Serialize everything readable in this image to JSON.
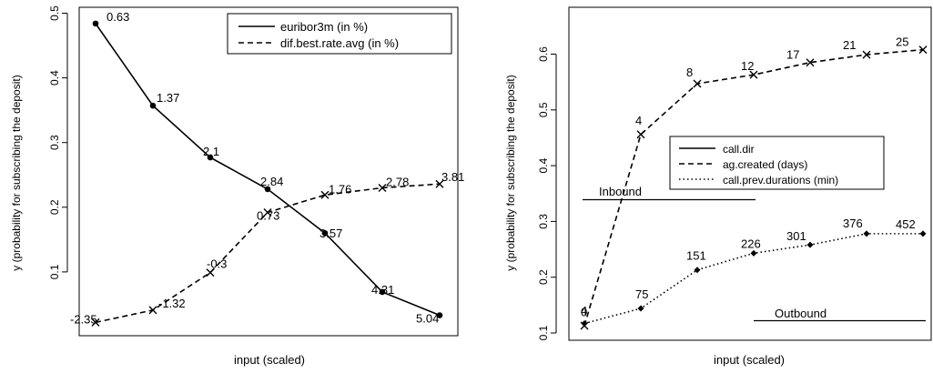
{
  "chart_data": [
    {
      "type": "line",
      "xlabel": "input (scaled)",
      "ylabel": "y (probability for subscribing the deposit)",
      "ylim": [
        0,
        0.5
      ],
      "x_ticks_shown": false,
      "y_ticks": [
        "0.1",
        "0.2",
        "0.3",
        "0.4",
        "0.5"
      ],
      "y_tick_values": [
        0.1,
        0.2,
        0.3,
        0.4,
        0.5
      ],
      "grid": false,
      "legend_position": "top-right",
      "series": [
        {
          "name": "euribor3m (in %)",
          "style": "solid",
          "marker": "dot",
          "x": [
            0,
            1,
            2,
            3,
            4,
            5,
            6
          ],
          "values": [
            0.484,
            0.357,
            0.277,
            0.228,
            0.16,
            0.069,
            0.033
          ],
          "point_labels": [
            "0.63",
            "1.37",
            "2.1",
            "2.84",
            "3.57",
            "4.31",
            "5.04"
          ]
        },
        {
          "name": "dif.best.rate.avg (in %)",
          "style": "dashed",
          "marker": "cross",
          "x": [
            0,
            1,
            2,
            3,
            4,
            5,
            6
          ],
          "values": [
            0.022,
            0.041,
            0.099,
            0.192,
            0.219,
            0.23,
            0.236
          ],
          "point_labels": [
            "-2.35",
            "-1.32",
            "-0.3",
            "0.73",
            "1.76",
            "2.78",
            "3.81"
          ]
        }
      ]
    },
    {
      "type": "line",
      "xlabel": "input (scaled)",
      "ylabel": "y (probability for subscribing the deposit)",
      "ylim": [
        0.1,
        0.6
      ],
      "x_ticks_shown": false,
      "y_ticks": [
        "0.1",
        "0.2",
        "0.3",
        "0.4",
        "0.5",
        "0.6"
      ],
      "y_tick_values": [
        0.1,
        0.2,
        0.3,
        0.4,
        0.5,
        0.6
      ],
      "grid": false,
      "legend_position": "center",
      "series": [
        {
          "name": "call.dir",
          "style": "solid",
          "marker": "none",
          "segments": [
            {
              "label": "Inbound",
              "value": 0.334
            },
            {
              "label": "Outbound",
              "value": 0.117
            }
          ]
        },
        {
          "name": "ag.created (days)",
          "style": "dashed",
          "marker": "cross",
          "x": [
            0,
            1,
            2,
            3,
            4,
            5,
            6
          ],
          "values": [
            0.113,
            0.456,
            0.547,
            0.563,
            0.585,
            0.599,
            0.608
          ],
          "point_labels": [
            "4",
            "4",
            "8",
            "12",
            "17",
            "21",
            "25"
          ]
        },
        {
          "name": "call.prev.durations (min)",
          "style": "dotted",
          "marker": "diamond",
          "x": [
            0,
            1,
            2,
            3,
            4,
            5,
            6
          ],
          "values": [
            0.117,
            0.144,
            0.213,
            0.243,
            0.258,
            0.278,
            0.278
          ],
          "point_labels": [
            "0",
            "75",
            "151",
            "226",
            "301",
            "376",
            "452"
          ]
        }
      ]
    }
  ]
}
